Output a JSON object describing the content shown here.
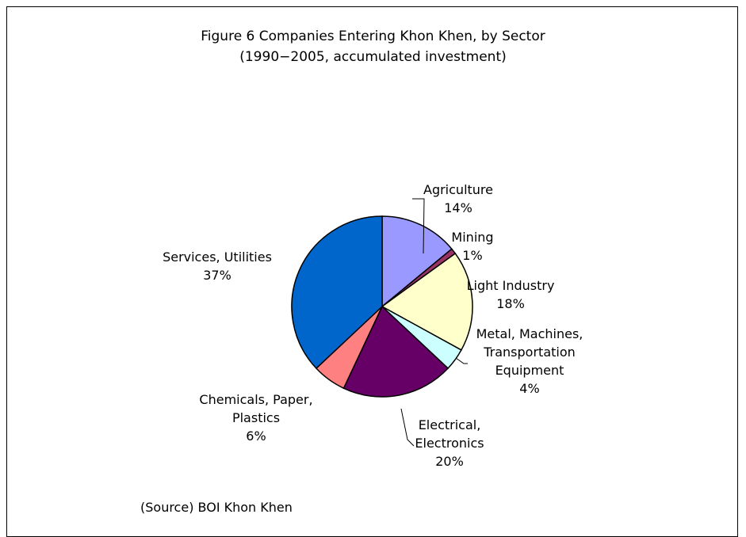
{
  "chart_data": {
    "type": "pie",
    "title": "Figure 6 Companies Entering Khon Khen, by Sector",
    "subtitle": "(1990−2005, accumulated investment)",
    "slices": [
      {
        "label": [
          "Agriculture"
        ],
        "pct_label": "14%",
        "value": 14,
        "color": "#9999ff"
      },
      {
        "label": [
          "Mining"
        ],
        "pct_label": "1%",
        "value": 1,
        "color": "#993366"
      },
      {
        "label": [
          "Light Industry"
        ],
        "pct_label": "18%",
        "value": 18,
        "color": "#ffffcc"
      },
      {
        "label": [
          "Metal, Machines,",
          "Transportation",
          "Equipment"
        ],
        "pct_label": "4%",
        "value": 4,
        "color": "#ccffff"
      },
      {
        "label": [
          "Electrical,",
          "Electronics"
        ],
        "pct_label": "20%",
        "value": 20,
        "color": "#660066"
      },
      {
        "label": [
          "Chemicals, Paper,",
          "Plastics"
        ],
        "pct_label": "6%",
        "value": 6,
        "color": "#ff8080"
      },
      {
        "label": [
          "Services, Utilities"
        ],
        "pct_label": "37%",
        "value": 37,
        "color": "#0066cc"
      }
    ],
    "source": "(Source) BOI Khon Khen"
  }
}
